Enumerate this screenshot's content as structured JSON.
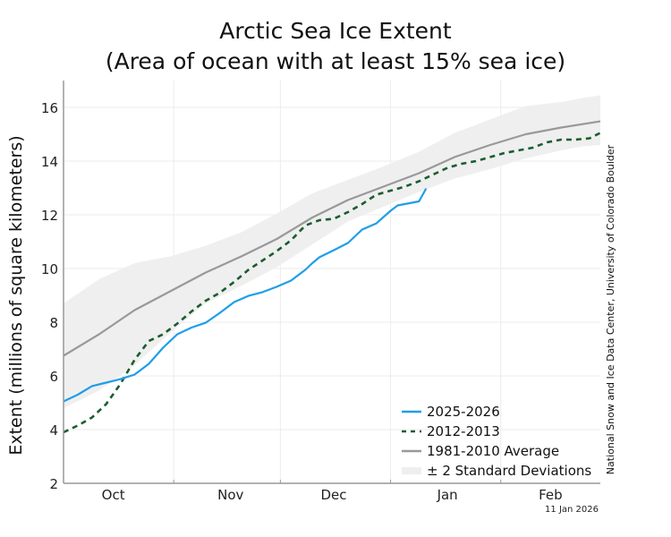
{
  "chart_data": {
    "type": "line",
    "title_lines": [
      "Arctic Sea Ice Extent",
      "(Area of ocean with at least 15% sea ice)"
    ],
    "ylabel": "Extent (millions of square kilometers)",
    "xlabel": "",
    "ylim": [
      2,
      17
    ],
    "yticks": [
      2,
      4,
      6,
      8,
      10,
      12,
      14,
      16
    ],
    "x_unit": "days since Oct 1",
    "xlim": [
      0,
      151
    ],
    "month_boundaries": [
      31,
      61,
      92,
      123
    ],
    "x_tick_labels": [
      {
        "label": "Oct",
        "day": 14
      },
      {
        "label": "Nov",
        "day": 47
      },
      {
        "label": "Dec",
        "day": 76
      },
      {
        "label": "Jan",
        "day": 108
      },
      {
        "label": "Feb",
        "day": 137
      }
    ],
    "grid": true,
    "legend_position": "bottom-right",
    "series": [
      {
        "name": "2025-2026",
        "style": "solid",
        "color": "#1f9ee8",
        "x": [
          0,
          4,
          8,
          12,
          16,
          20,
          24,
          28,
          32,
          36,
          40,
          44,
          48,
          52,
          56,
          60,
          64,
          68,
          70,
          72,
          76,
          80,
          84,
          88,
          92,
          94,
          96,
          100,
          102
        ],
        "y": [
          5.05,
          5.3,
          5.62,
          5.75,
          5.88,
          6.05,
          6.45,
          7.05,
          7.55,
          7.8,
          7.98,
          8.35,
          8.75,
          8.98,
          9.12,
          9.32,
          9.55,
          9.95,
          10.2,
          10.42,
          10.68,
          10.95,
          11.45,
          11.68,
          12.15,
          12.35,
          12.4,
          12.5,
          12.98
        ]
      },
      {
        "name": "2012-2013",
        "style": "dashed",
        "color": "#1a5e2e",
        "x": [
          0,
          4,
          8,
          12,
          16,
          20,
          24,
          28,
          32,
          36,
          40,
          44,
          48,
          52,
          56,
          60,
          64,
          68,
          72,
          76,
          80,
          84,
          88,
          92,
          96,
          100,
          104,
          108,
          112,
          116,
          120,
          124,
          128,
          132,
          136,
          140,
          144,
          148,
          151
        ],
        "y": [
          3.9,
          4.15,
          4.45,
          4.95,
          5.7,
          6.6,
          7.3,
          7.55,
          7.95,
          8.4,
          8.8,
          9.1,
          9.5,
          9.95,
          10.3,
          10.65,
          11.05,
          11.6,
          11.8,
          11.85,
          12.1,
          12.4,
          12.75,
          12.9,
          13.05,
          13.25,
          13.5,
          13.75,
          13.9,
          14.0,
          14.15,
          14.3,
          14.4,
          14.5,
          14.7,
          14.8,
          14.8,
          14.85,
          15.05
        ]
      },
      {
        "name": "1981-2010 Average",
        "style": "solid",
        "color": "#999999",
        "x": [
          0,
          10,
          20,
          30,
          40,
          50,
          60,
          70,
          80,
          90,
          100,
          110,
          120,
          130,
          140,
          151
        ],
        "y": [
          6.75,
          7.55,
          8.45,
          9.15,
          9.85,
          10.45,
          11.1,
          11.9,
          12.55,
          13.05,
          13.55,
          14.15,
          14.6,
          15.0,
          15.25,
          15.48
        ]
      }
    ],
    "band": {
      "name": "± 2 Standard Deviations",
      "color": "#efefef",
      "x": [
        0,
        10,
        20,
        30,
        40,
        50,
        60,
        70,
        80,
        90,
        100,
        110,
        120,
        130,
        140,
        146,
        151
      ],
      "upper": [
        8.7,
        9.6,
        10.2,
        10.45,
        10.85,
        11.35,
        12.05,
        12.8,
        13.3,
        13.8,
        14.35,
        15.05,
        15.55,
        16.05,
        16.2,
        16.35,
        16.45
      ],
      "lower": [
        4.8,
        5.45,
        6.4,
        7.6,
        8.7,
        9.35,
        10.05,
        10.9,
        11.75,
        12.3,
        12.85,
        13.35,
        13.7,
        14.1,
        14.4,
        14.55,
        14.6
      ]
    },
    "legend": [
      {
        "label": "2025-2026",
        "kind": "line"
      },
      {
        "label": "2012-2013",
        "kind": "dashed"
      },
      {
        "label": "1981-2010 Average",
        "kind": "line"
      },
      {
        "label": "± 2 Standard Deviations",
        "kind": "band"
      }
    ],
    "credit": "National Snow and Ice Data Center, University of Colorado Boulder",
    "date_stamp": "11 Jan 2026"
  }
}
